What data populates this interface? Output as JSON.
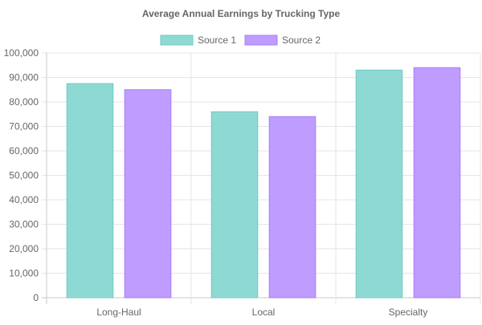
{
  "chart_data": {
    "type": "bar",
    "title": "Average Annual Earnings by Trucking Type",
    "categories": [
      "Long-Haul",
      "Local",
      "Specialty"
    ],
    "series": [
      {
        "name": "Source 1",
        "values": [
          87500,
          76000,
          93000
        ],
        "color": "#8fd9d4",
        "border": "#6fcac4"
      },
      {
        "name": "Source 2",
        "values": [
          85000,
          74000,
          94000
        ],
        "color": "#bf9cff",
        "border": "#a97df7"
      }
    ],
    "ylim": [
      0,
      100000
    ],
    "yticks": [
      0,
      10000,
      20000,
      30000,
      40000,
      50000,
      60000,
      70000,
      80000,
      90000,
      100000
    ],
    "ytick_labels": [
      "0",
      "10,000",
      "20,000",
      "30,000",
      "40,000",
      "50,000",
      "60,000",
      "70,000",
      "80,000",
      "90,000",
      "100,000"
    ],
    "grid": true,
    "legend_position": "top-center",
    "xlabel": "",
    "ylabel": ""
  }
}
